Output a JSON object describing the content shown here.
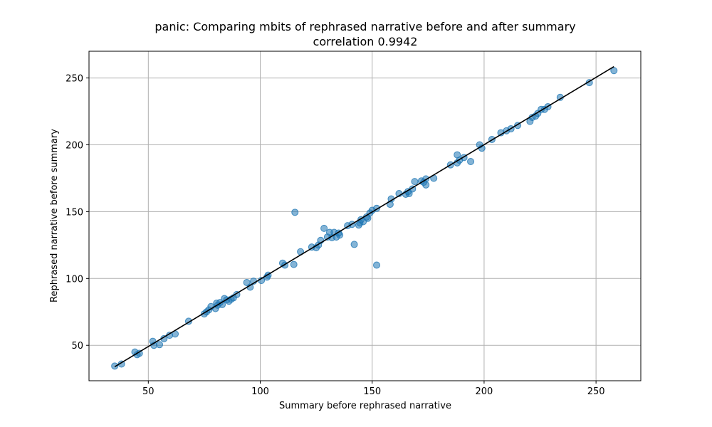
{
  "chart_data": {
    "type": "scatter",
    "title": "panic: Comparing mbits of rephrased narrative before and after summary",
    "subtitle": "correlation 0.9942",
    "xlabel": "Summary before rephrased narrative",
    "ylabel": "Rephrased narrative before summary",
    "xlim": [
      23.5,
      270
    ],
    "ylim": [
      23.5,
      270
    ],
    "xticks": [
      50,
      100,
      150,
      200,
      250
    ],
    "yticks": [
      50,
      100,
      150,
      200,
      250
    ],
    "grid": true,
    "point_color": "#1f77b4",
    "line_color": "#000000",
    "fit_line": {
      "x": [
        35,
        258
      ],
      "y": [
        34,
        258.5
      ]
    },
    "points": {
      "x": [
        35,
        38,
        44,
        45,
        46,
        52,
        52.5,
        55,
        57,
        59.5,
        62,
        68,
        75,
        76,
        77,
        78,
        80,
        80.5,
        81,
        82,
        83,
        84,
        85,
        86,
        87,
        88,
        89.5,
        94,
        95.5,
        97,
        100.5,
        103,
        103.5,
        110,
        111,
        115,
        115.5,
        118,
        123,
        125,
        126,
        127,
        128.5,
        130,
        131,
        132,
        133,
        134,
        135,
        135.5,
        139,
        141,
        142,
        144,
        144.5,
        145,
        146,
        147.5,
        148,
        149,
        150,
        152,
        152,
        158,
        158.5,
        162,
        165,
        166,
        166.5,
        168,
        169,
        172,
        173,
        174,
        174,
        177.5,
        185,
        188,
        188,
        189,
        191,
        194,
        198,
        199,
        203.5,
        207.5,
        210,
        212,
        215,
        220.5,
        221.5,
        223,
        224,
        225.5,
        227,
        228.5,
        234,
        247,
        258
      ],
      "y": [
        34.5,
        36,
        45,
        43,
        44,
        53,
        50,
        50.5,
        55,
        57.5,
        58.5,
        68,
        73.5,
        75,
        76.5,
        79,
        77.5,
        81.5,
        80,
        82,
        80.5,
        85,
        84,
        83,
        84.5,
        85.5,
        88,
        97,
        93.5,
        98,
        98.5,
        101,
        102.5,
        111.5,
        110,
        110.5,
        149.5,
        120,
        123.5,
        123,
        125,
        128.5,
        137.5,
        131,
        134.5,
        130.5,
        134.5,
        131,
        134,
        132.5,
        139.5,
        140.5,
        125.5,
        140,
        141.5,
        144,
        142.5,
        146,
        145,
        149,
        151,
        152.5,
        110,
        155.5,
        159.5,
        163.5,
        163,
        165,
        163.5,
        167,
        172.5,
        173,
        172,
        174.5,
        170,
        175,
        185,
        186.5,
        192.5,
        188.5,
        190.5,
        187.5,
        200,
        197.5,
        204,
        209,
        210.5,
        212,
        214.5,
        217.5,
        220.5,
        221.5,
        223.5,
        226.5,
        226.5,
        228.5,
        235.5,
        246.5,
        255.5
      ]
    }
  }
}
